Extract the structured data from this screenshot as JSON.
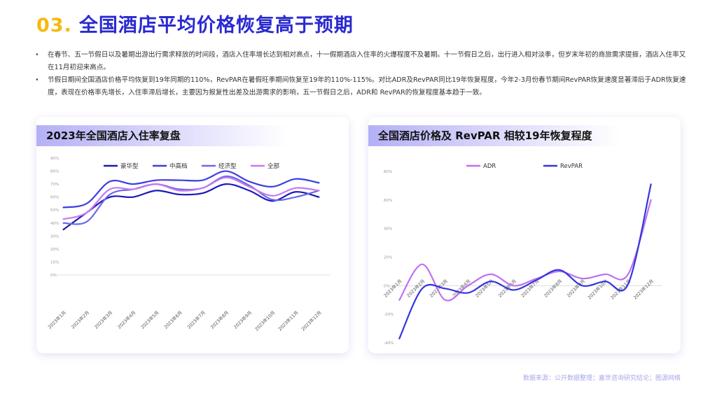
{
  "header": {
    "number": "03.",
    "title": "全国酒店平均价格恢复高于预期"
  },
  "bullets": [
    "在春节、五一节假日以及暑期出游出行需求释放的时间段，酒店入住率增长达到相对高点，十一假期酒店入住率的火爆程度不及暑期。十一节假日之后，出行进入相对淡季，但岁末年初的商旅需求提振，酒店入住率又在11月初迎来高点。",
    "节假日期间全国酒店价格平均恢复到19年同期的110%，RevPAR在暑假旺季期间恢复至19年的110%-115%。对比ADR及RevPAR同比19年恢复程度，今年2-3月份春节期间RevPAR恢复速度显著滞后于ADR恢复速度，表现在价格率先增长，入住率滞后增长，主要因为报复性出差及出游需求的影响，五一节假日之后，ADR和 RevPAR的恢复程度基本趋于一致。"
  ],
  "source": "数据来源：公开数据整理；嘉世咨询研究结论；图源网络",
  "colors": {
    "accent_yellow": "#f5b90f",
    "title_blue": "#2a2ad0"
  },
  "chart_data": [
    {
      "type": "line",
      "title": "2023年全国酒店入住率复盘",
      "categories": [
        "2023年1月",
        "2023年2月",
        "2023年3月",
        "2023年4月",
        "2023年5月",
        "2023年6月",
        "2023年7月",
        "2023年8月",
        "2023年9月",
        "2023年10月",
        "2023年11月",
        "2023年12月"
      ],
      "yticks": [
        "0%",
        "10%",
        "20%",
        "30%",
        "40%",
        "50%",
        "60%",
        "70%",
        "80%",
        "90%"
      ],
      "ylim": [
        0,
        90
      ],
      "legend_position": "top",
      "grid": false,
      "series": [
        {
          "name": "豪华型",
          "color": "#1a1ab8",
          "values": [
            35,
            48,
            60,
            60,
            65,
            62,
            63,
            70,
            65,
            57,
            64,
            60
          ]
        },
        {
          "name": "中高档",
          "color": "#3d3de0",
          "values": [
            52,
            55,
            72,
            70,
            73,
            73,
            73,
            80,
            72,
            68,
            74,
            71
          ]
        },
        {
          "name": "经济型",
          "color": "#6a6ae8",
          "values": [
            40,
            41,
            62,
            66,
            70,
            66,
            67,
            76,
            69,
            58,
            60,
            65
          ]
        },
        {
          "name": "全部",
          "color": "#c878f0",
          "values": [
            43,
            48,
            66,
            66,
            70,
            65,
            67,
            75,
            68,
            61,
            67,
            65
          ]
        }
      ]
    },
    {
      "type": "line",
      "title": "全国酒店价格及 RevPAR 相较19年恢复程度",
      "categories": [
        "2023年1月",
        "2023年2月",
        "2023年3月",
        "2023年4月",
        "2023年5月",
        "2023年6月",
        "2023年7月",
        "2023年8月",
        "2023年9月",
        "2023年10月",
        "2023年11月",
        "2023年12月"
      ],
      "yticks": [
        "-40%",
        "-20%",
        "0%",
        "20%",
        "40%",
        "60%",
        "80%"
      ],
      "ylim": [
        -40,
        80
      ],
      "legend_position": "top",
      "grid": false,
      "series": [
        {
          "name": "ADR",
          "color": "#c070ee",
          "values": [
            -10,
            15,
            -10,
            0,
            8,
            0,
            5,
            10,
            5,
            8,
            8,
            60
          ]
        },
        {
          "name": "RevPAR",
          "color": "#3535e0",
          "values": [
            -37,
            -2,
            -2,
            -5,
            3,
            -3,
            4,
            11,
            0,
            3,
            1,
            71
          ]
        }
      ]
    }
  ]
}
